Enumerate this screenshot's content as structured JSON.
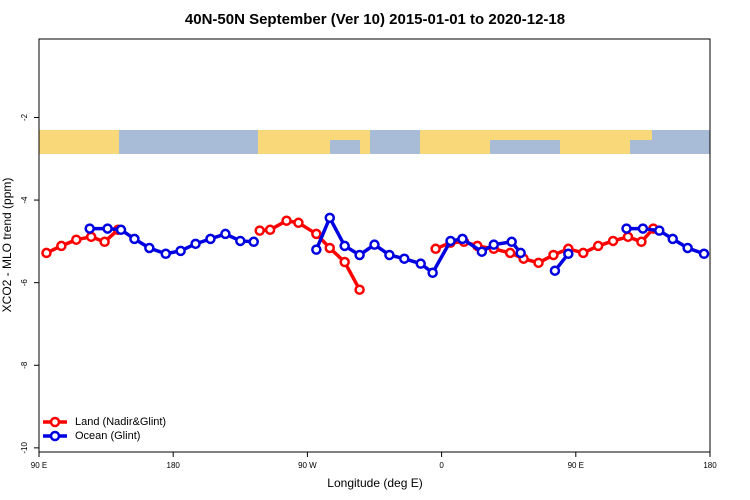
{
  "chart_data": {
    "type": "line",
    "title": "40N-50N September (Ver 10)   2015-01-01 to 2020-12-18",
    "xlabel": "Longitude (deg E)",
    "ylabel": "XCO2 - MLO trend (ppm)",
    "xlim": [
      90,
      540
    ],
    "ylim": [
      -10.1,
      -0.1
    ],
    "xticks": [
      {
        "value": 90,
        "label": "90 E"
      },
      {
        "value": 180,
        "label": "180"
      },
      {
        "value": 270,
        "label": "90 W"
      },
      {
        "value": 360,
        "label": "0"
      },
      {
        "value": 450,
        "label": "90 E"
      },
      {
        "value": 540,
        "label": "180"
      }
    ],
    "yticks": [
      -2,
      -4,
      -6,
      -8,
      -10
    ],
    "legend": "bottom-left",
    "series": [
      {
        "name": "Land (Nadir&Glint)",
        "color": "#ff0000",
        "x": [
          95,
          105,
          115,
          125,
          134,
          143,
          null,
          238,
          245,
          256,
          264,
          276,
          285,
          295,
          305,
          null,
          356,
          366,
          375,
          384,
          395,
          406,
          415,
          425,
          435,
          445,
          455,
          465,
          475,
          485,
          494,
          502
        ],
        "values": [
          -5.28,
          -5.11,
          -4.96,
          -4.89,
          -5.01,
          -4.72,
          null,
          -4.74,
          -4.72,
          -4.5,
          -4.55,
          -4.82,
          -5.16,
          -5.5,
          -6.17,
          null,
          -5.18,
          -5.03,
          -5.01,
          -5.11,
          -5.18,
          -5.28,
          -5.42,
          -5.52,
          -5.33,
          -5.18,
          -5.28,
          -5.11,
          -4.99,
          -4.89,
          -5.01,
          -4.69
        ]
      },
      {
        "name": "Ocean (Glint)",
        "color": "#0000e0",
        "x": [
          124,
          136,
          145,
          154,
          164,
          175,
          185,
          195,
          205,
          215,
          225,
          234,
          null,
          276,
          285,
          295,
          305,
          315,
          325,
          335,
          346,
          354,
          366,
          374,
          387,
          395,
          407,
          413,
          null,
          436,
          445,
          null,
          484,
          495,
          506,
          515,
          525,
          536
        ],
        "values": [
          -4.69,
          -4.69,
          -4.72,
          -4.94,
          -5.16,
          -5.3,
          -5.23,
          -5.06,
          -4.94,
          -4.82,
          -4.99,
          -5.01,
          null,
          -5.2,
          -4.43,
          -5.11,
          -5.33,
          -5.08,
          -5.33,
          -5.42,
          -5.54,
          -5.76,
          -4.99,
          -4.94,
          -5.25,
          -5.08,
          -5.01,
          -5.28,
          null,
          -5.71,
          -5.3,
          null,
          -4.69,
          -4.69,
          -4.74,
          -4.94,
          -5.16,
          -5.3
        ]
      }
    ]
  }
}
